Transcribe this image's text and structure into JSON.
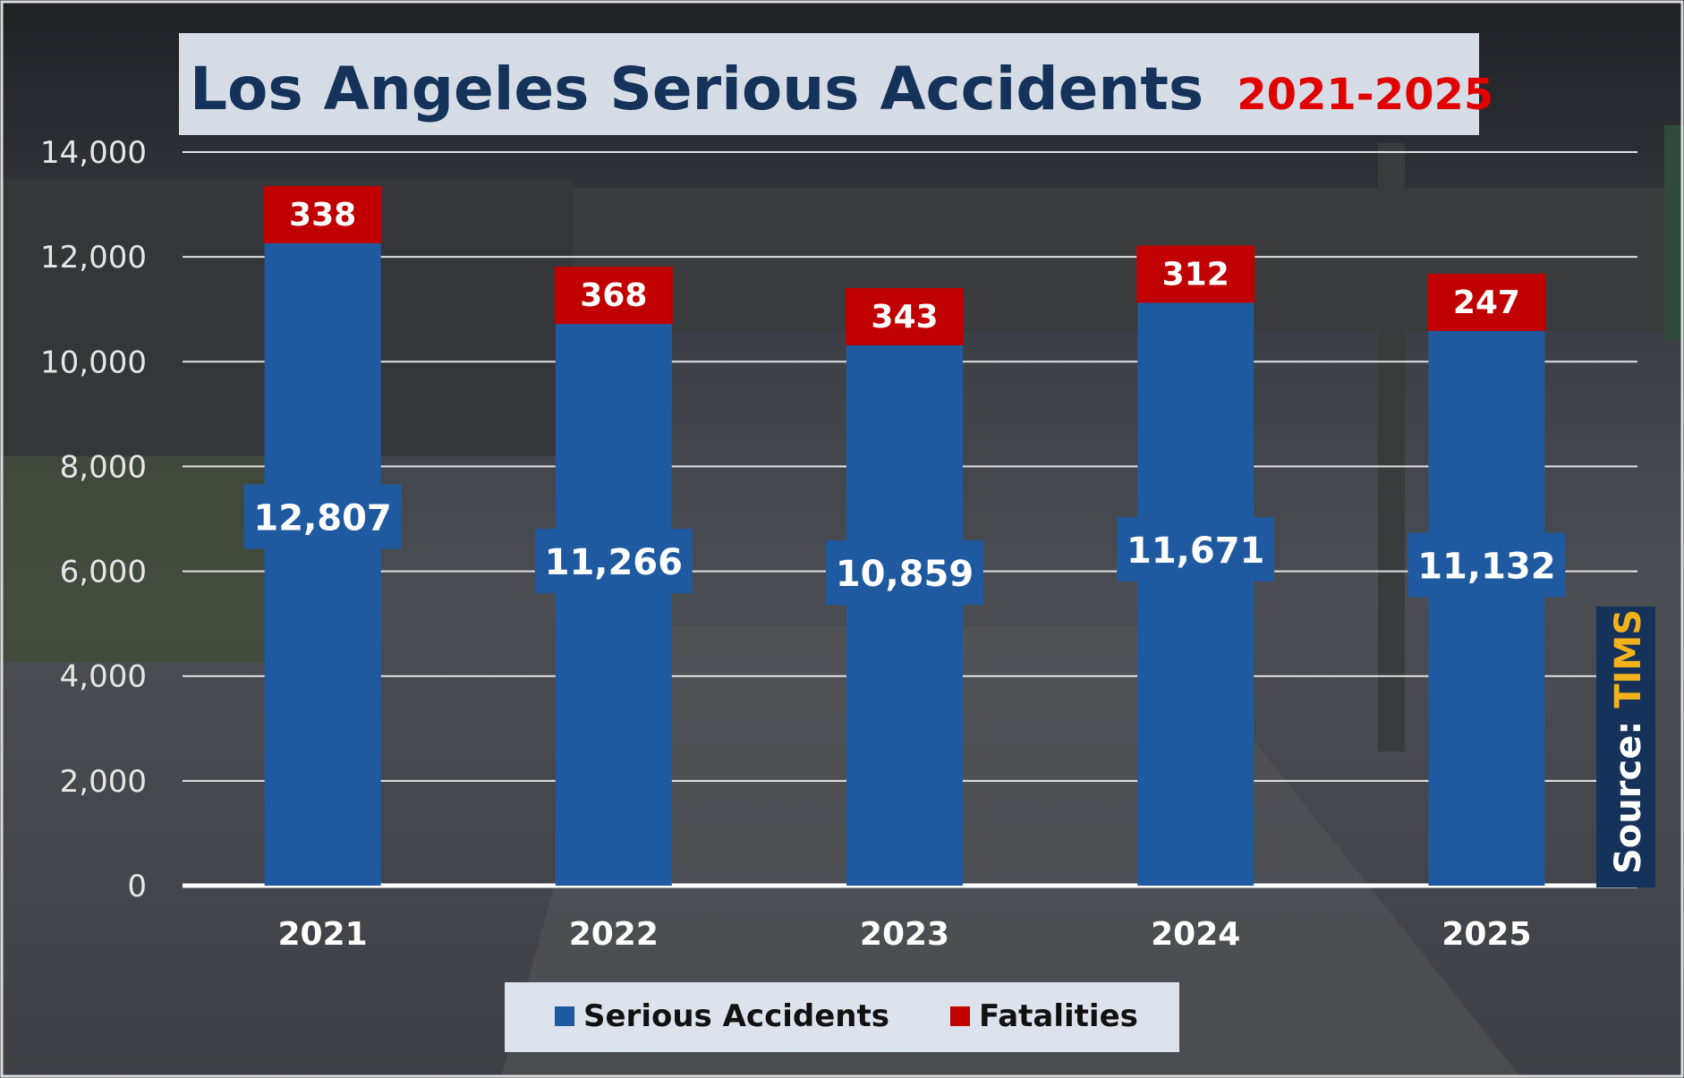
{
  "title": {
    "main": "Los Angeles Serious Accidents",
    "range": "2021-2025"
  },
  "source": {
    "label": "Source: ",
    "name": "TIMS"
  },
  "colors": {
    "accidents": "#1f5aa0",
    "fatalities": "#c00000",
    "title_text": "#14325a",
    "title_range": "#e10000",
    "source_name": "#f3b21c"
  },
  "chart_data": {
    "type": "bar",
    "title": "Los Angeles Serious Accidents 2021-2025",
    "categories": [
      "2021",
      "2022",
      "2023",
      "2024",
      "2025"
    ],
    "series": [
      {
        "name": "Serious Accidents",
        "values": [
          12807,
          11266,
          10859,
          11671,
          11132
        ],
        "labels": [
          "12,807",
          "11,266",
          "10,859",
          "11,671",
          "11,132"
        ]
      },
      {
        "name": "Fatalities",
        "values": [
          338,
          368,
          343,
          312,
          247
        ],
        "labels": [
          "338",
          "368",
          "343",
          "312",
          "247"
        ]
      }
    ],
    "ylim": [
      0,
      14000
    ],
    "yticks": [
      0,
      2000,
      4000,
      6000,
      8000,
      10000,
      12000,
      14000
    ],
    "ytick_labels": [
      "0",
      "2,000",
      "4,000",
      "6,000",
      "8,000",
      "10,000",
      "12,000",
      "14,000"
    ],
    "grid": true,
    "legend": "bottom-center"
  }
}
